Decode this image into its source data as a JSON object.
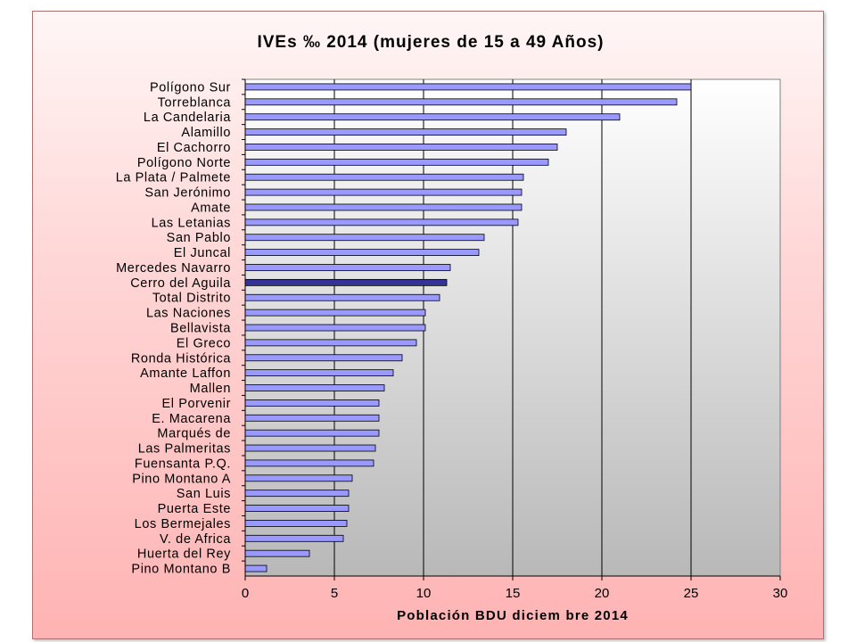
{
  "chart_data": {
    "type": "bar",
    "orientation": "horizontal",
    "title": "IVEs ‰ 2014 (mujeres de 15 a 49 Años)",
    "xlabel": "Población BDU diciem bre 2014",
    "ylabel": "",
    "xlim": [
      0,
      30
    ],
    "xticks": [
      "0",
      "5",
      "10",
      "15",
      "20",
      "25",
      "30"
    ],
    "grid": "vertical",
    "legend": "none",
    "bar_color": "#9999ff",
    "highlight_color": "#333399",
    "highlight_category": "Cerro del Aguila",
    "categories": [
      "Polígono Sur",
      "Torreblanca",
      "La Candelaria",
      "Alamillo",
      "El Cachorro",
      "Polígono Norte",
      "La Plata / Palmete",
      "San Jerónimo",
      "Amate",
      "Las Letanias",
      "San Pablo",
      "El Juncal",
      "Mercedes Navarro",
      "Cerro del Aguila",
      "Total Distrito",
      "Las Naciones",
      "Bellavista",
      "El Greco",
      "Ronda Histórica",
      "Amante Laffon",
      "Mallen",
      "El Porvenir",
      "E. Macarena",
      "Marqués de",
      "Las Palmeritas",
      "Fuensanta P.Q.",
      "Pino Montano A",
      "San Luis",
      "Puerta Este",
      "Los Bermejales",
      "V. de Africa",
      "Huerta del Rey",
      "Pino Montano B"
    ],
    "values": [
      25.0,
      24.2,
      21.0,
      18.0,
      17.5,
      17.0,
      15.6,
      15.5,
      15.5,
      15.3,
      13.4,
      13.1,
      11.5,
      11.3,
      10.9,
      10.1,
      10.1,
      9.6,
      8.8,
      8.3,
      7.8,
      7.5,
      7.5,
      7.5,
      7.3,
      7.2,
      6.0,
      5.8,
      5.8,
      5.7,
      5.5,
      3.6,
      1.2
    ]
  }
}
